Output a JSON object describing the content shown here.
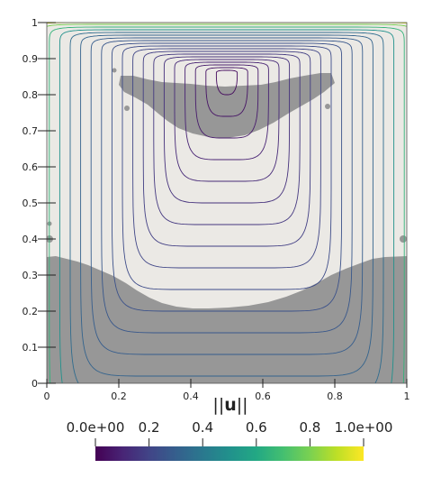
{
  "chart_data": {
    "type": "contour",
    "x_ticks": [
      "0",
      "0.2",
      "0.4",
      "0.6",
      "0.8",
      "1"
    ],
    "y_ticks": [
      "0",
      "0.1",
      "0.2",
      "0.3",
      "0.4",
      "0.5",
      "0.6",
      "0.7",
      "0.8",
      "0.9",
      "1"
    ],
    "xlim": [
      0,
      1
    ],
    "ylim": [
      0,
      1
    ],
    "colorbar": {
      "title_pre": "||",
      "title_bold": "u",
      "title_post": "||",
      "range": [
        0,
        1
      ],
      "tick_labels": [
        "0.0e+00",
        "0.2",
        "0.4",
        "0.6",
        "0.8",
        "1.0e+00"
      ],
      "tick_values": [
        0,
        0.2,
        0.4,
        0.6,
        0.8,
        1.0
      ],
      "colormap": "viridis"
    },
    "background": {
      "light_region": "#ebe9e5",
      "dark_region": "#979797"
    },
    "vortex_center": [
      0.5,
      0.86
    ],
    "contour_levels": [
      0.05,
      0.1,
      0.15,
      0.2,
      0.25,
      0.3,
      0.35,
      0.4,
      0.45,
      0.5,
      0.55,
      0.6,
      0.65,
      0.7,
      0.75,
      0.8,
      0.85,
      0.9,
      0.95
    ]
  }
}
